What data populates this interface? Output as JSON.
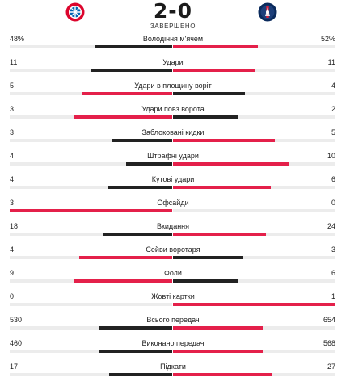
{
  "match": {
    "score": "2-0",
    "status": "ЗАВЕРШЕНО",
    "home_logo": "fc-bayern-logo",
    "away_logo": "psg-logo"
  },
  "colors": {
    "lead": "#e4204a",
    "trail": "#222222",
    "track": "#ececec"
  },
  "stats": [
    {
      "label": "Володіння м'ячем",
      "home": "48%",
      "away": "52%",
      "home_value": 48,
      "away_value": 52
    },
    {
      "label": "Удари",
      "home": "11",
      "away": "11",
      "home_value": 11,
      "away_value": 11
    },
    {
      "label": "Удари в площину воріт",
      "home": "5",
      "away": "4",
      "home_value": 5,
      "away_value": 4
    },
    {
      "label": "Удари повз ворота",
      "home": "3",
      "away": "2",
      "home_value": 3,
      "away_value": 2
    },
    {
      "label": "Заблоковані кидки",
      "home": "3",
      "away": "5",
      "home_value": 3,
      "away_value": 5
    },
    {
      "label": "Штрафні удари",
      "home": "4",
      "away": "10",
      "home_value": 4,
      "away_value": 10
    },
    {
      "label": "Кутові удари",
      "home": "4",
      "away": "6",
      "home_value": 4,
      "away_value": 6
    },
    {
      "label": "Офсайди",
      "home": "3",
      "away": "0",
      "home_value": 3,
      "away_value": 0
    },
    {
      "label": "Вкидання",
      "home": "18",
      "away": "24",
      "home_value": 18,
      "away_value": 24
    },
    {
      "label": "Сейви воротаря",
      "home": "4",
      "away": "3",
      "home_value": 4,
      "away_value": 3
    },
    {
      "label": "Фоли",
      "home": "9",
      "away": "6",
      "home_value": 9,
      "away_value": 6
    },
    {
      "label": "Жовті картки",
      "home": "0",
      "away": "1",
      "home_value": 0,
      "away_value": 1
    },
    {
      "label": "Всього передач",
      "home": "530",
      "away": "654",
      "home_value": 530,
      "away_value": 654
    },
    {
      "label": "Виконано передач",
      "home": "460",
      "away": "568",
      "home_value": 460,
      "away_value": 568
    },
    {
      "label": "Підкати",
      "home": "17",
      "away": "27",
      "home_value": 17,
      "away_value": 27
    }
  ]
}
